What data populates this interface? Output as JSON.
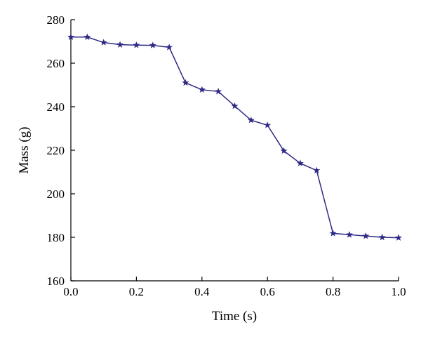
{
  "chart_data": {
    "type": "line",
    "xlabel": "Time (s)",
    "ylabel": "Mass (g)",
    "xlim": [
      0,
      1
    ],
    "ylim": [
      160,
      280
    ],
    "x_ticks": [
      0,
      0.2,
      0.4,
      0.6,
      0.8,
      1
    ],
    "x_tick_labels": [
      "0.0",
      "0.2",
      "0.4",
      "0.6",
      "0.8",
      "1.0"
    ],
    "y_ticks": [
      160,
      180,
      200,
      220,
      240,
      260,
      280
    ],
    "y_tick_labels": [
      "160",
      "180",
      "200",
      "220",
      "240",
      "260",
      "280"
    ],
    "grid": false,
    "legend": "none",
    "series": [
      {
        "marker": "star",
        "color": "#2e2a86",
        "x": [
          0,
          0.05,
          0.1,
          0.15,
          0.2,
          0.25,
          0.3,
          0.35,
          0.4,
          0.45,
          0.5,
          0.55,
          0.6,
          0.65,
          0.7,
          0.75,
          0.8,
          0.85,
          0.9,
          0.95,
          1.0
        ],
        "y": [
          272,
          272,
          269.5,
          268.5,
          268.3,
          268.2,
          267.3,
          251,
          247.8,
          247,
          240.3,
          233.8,
          231.5,
          219.7,
          214,
          210.7,
          181.8,
          181.2,
          180.6,
          180,
          179.8
        ]
      }
    ]
  }
}
